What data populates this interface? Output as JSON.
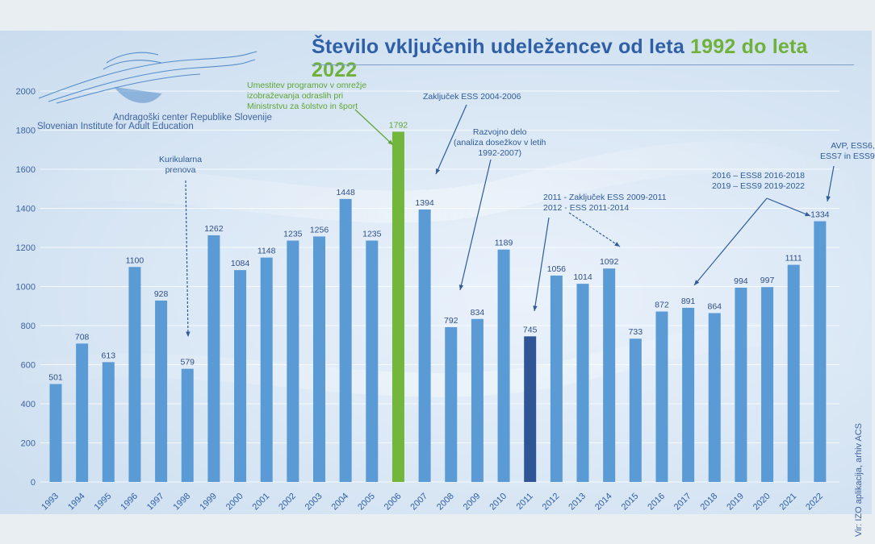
{
  "title": {
    "part1": "Število vključenih udeležencev od leta ",
    "part2": "1992 do leta 2022"
  },
  "logo": {
    "line1": "Andragoški center Republike Slovenije",
    "line2": "Slovenian Institute for Adult Education"
  },
  "source": "Vir: IZO aplikacija, arhiv ACS",
  "colors": {
    "bar": "#5b9bd5",
    "highlight_green": "#72b73c",
    "highlight_dark": "#2f5597",
    "title_blue": "#2f5fa6",
    "title_green": "#6fb13a",
    "annotation_blue": "#2f5b99",
    "annotation_green": "#5fa535"
  },
  "annotations": [
    {
      "lines": [
        "Umestitev programov v omrežje",
        "izobraževanja odraslih pri",
        "Ministrstvu za šolstvo in šport"
      ],
      "color": "green"
    },
    {
      "lines": [
        "Zaključek ESS 2004-2006"
      ],
      "color": "blue"
    },
    {
      "lines": [
        "Razvojno delo",
        "(analiza dosežkov v letih",
        "1992-2007)"
      ],
      "color": "blue"
    },
    {
      "lines": [
        "Kurikularna",
        "prenova"
      ],
      "color": "blue"
    },
    {
      "lines": [
        "2011 - Zaključek ESS 2009-2011",
        "2012 - ESS 2011-2014"
      ],
      "color": "blue"
    },
    {
      "lines": [
        "2016 – ESS8 2016-2018",
        "2019 – ESS9 2019-2022"
      ],
      "color": "blue"
    },
    {
      "lines": [
        "AVP, ESS6,",
        "ESS7 in ESS9"
      ],
      "color": "blue"
    }
  ],
  "chart_data": {
    "type": "bar",
    "title": "Število vključenih udeležencev od leta 1992 do leta 2022",
    "categories": [
      "1993",
      "1994",
      "1995",
      "1996",
      "1997",
      "1998",
      "1999",
      "2000",
      "2001",
      "2002",
      "2003",
      "2004",
      "2005",
      "2006",
      "2007",
      "2008",
      "2009",
      "2010",
      "2011",
      "2012",
      "2013",
      "2014",
      "2015",
      "2016",
      "2017",
      "2018",
      "2019",
      "2020",
      "2021",
      "2022"
    ],
    "values": [
      501,
      708,
      613,
      1100,
      928,
      579,
      1262,
      1084,
      1148,
      1235,
      1256,
      1448,
      1235,
      1792,
      1394,
      792,
      834,
      1189,
      745,
      1056,
      1014,
      1092,
      733,
      872,
      891,
      864,
      994,
      997,
      1111,
      1334
    ],
    "highlights": {
      "2006": "highlight_green",
      "2011": "highlight_dark"
    },
    "ylim": [
      0,
      2000
    ],
    "yticks": [
      0,
      200,
      400,
      600,
      800,
      1000,
      1200,
      1400,
      1600,
      1800,
      2000
    ],
    "grid": true,
    "legend": "none",
    "xlabel": "",
    "ylabel": ""
  }
}
